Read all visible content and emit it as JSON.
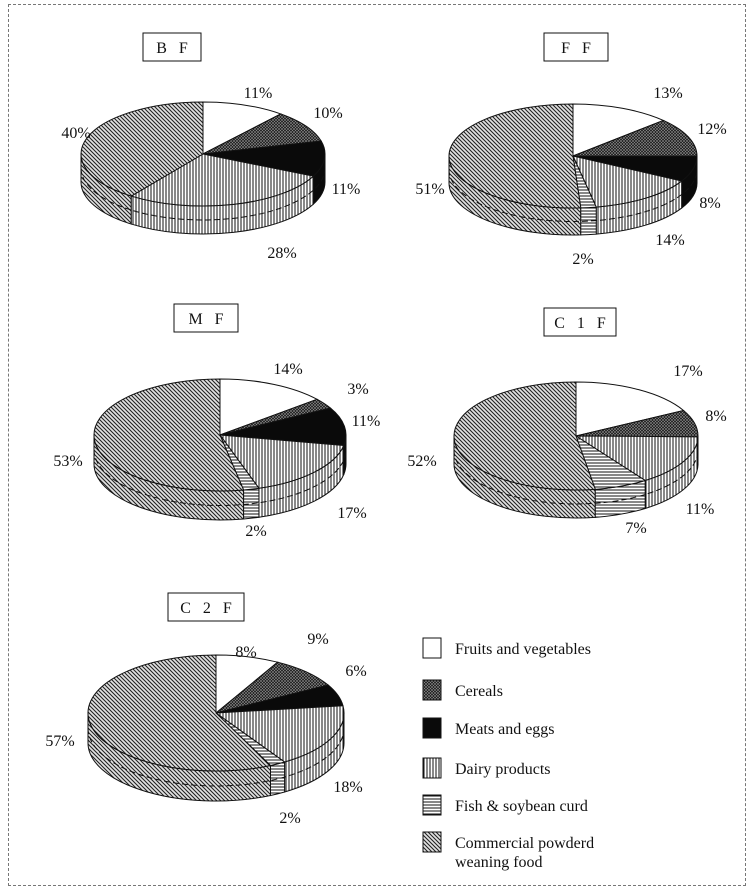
{
  "legend": [
    {
      "key": "fruits",
      "label": "Fruits and vegetables",
      "pattern": "white"
    },
    {
      "key": "cereals",
      "label": "Cereals",
      "pattern": "crosshatch-dark"
    },
    {
      "key": "meats",
      "label": "Meats and eggs",
      "pattern": "black"
    },
    {
      "key": "dairy",
      "label": "Dairy products",
      "pattern": "vertical-lines"
    },
    {
      "key": "fish",
      "label": "Fish & soybean curd",
      "pattern": "horizontal-lines"
    },
    {
      "key": "commercial",
      "label": "Commercial powderd weaning food",
      "label_lines": [
        "Commercial powderd",
        "weaning food"
      ],
      "pattern": "diagonal-lines"
    }
  ],
  "chart_data": [
    {
      "type": "pie",
      "title": "B F",
      "categories": [
        "Fruits and vegetables",
        "Cereals",
        "Meats and eggs",
        "Dairy products",
        "Fish & soybean curd",
        "Commercial powderd weaning food"
      ],
      "values": [
        11,
        10,
        11,
        28,
        0,
        40
      ],
      "labels": [
        "11%",
        "10%",
        "11%",
        "28%",
        "",
        "40%"
      ]
    },
    {
      "type": "pie",
      "title": "F F",
      "categories": [
        "Fruits and vegetables",
        "Cereals",
        "Meats and eggs",
        "Dairy products",
        "Fish & soybean curd",
        "Commercial powderd weaning food"
      ],
      "values": [
        13,
        12,
        8,
        14,
        2,
        51
      ],
      "labels": [
        "13%",
        "12%",
        "8%",
        "14%",
        "2%",
        "51%"
      ]
    },
    {
      "type": "pie",
      "title": "M F",
      "categories": [
        "Fruits and vegetables",
        "Cereals",
        "Meats and eggs",
        "Dairy products",
        "Fish & soybean curd",
        "Commercial powderd weaning food"
      ],
      "values": [
        14,
        3,
        11,
        17,
        2,
        53
      ],
      "labels": [
        "14%",
        "3%",
        "11%",
        "17%",
        "2%",
        "53%"
      ]
    },
    {
      "type": "pie",
      "title": "C 1 F",
      "categories": [
        "Fruits and vegetables",
        "Cereals",
        "Meats and eggs",
        "Dairy products",
        "Fish & soybean curd",
        "Commercial powderd weaning food"
      ],
      "values": [
        17,
        8,
        0,
        15,
        7,
        52
      ],
      "labels": [
        "17%",
        "8%",
        "",
        "15%",
        "7%",
        "52%"
      ],
      "extra_labels": [
        "11%"
      ]
    },
    {
      "type": "pie",
      "title": "C 2 F",
      "categories": [
        "Fruits and vegetables",
        "Cereals",
        "Meats and eggs",
        "Dairy products",
        "Fish & soybean curd",
        "Commercial powderd weaning food"
      ],
      "values": [
        8,
        9,
        6,
        18,
        2,
        57
      ],
      "labels": [
        "8%",
        "9%",
        "6%",
        "18%",
        "2%",
        "57%"
      ]
    }
  ]
}
